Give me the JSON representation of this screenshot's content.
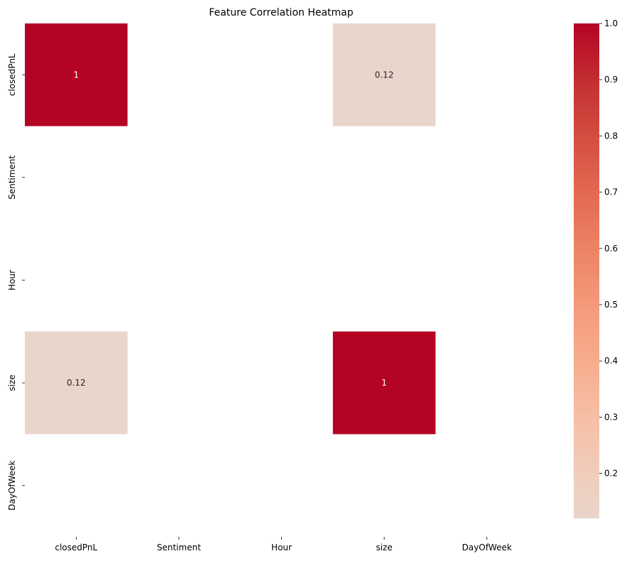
{
  "chart_data": {
    "type": "heatmap",
    "title": "Feature Correlation Heatmap",
    "x_categories": [
      "closedPnL",
      "Sentiment",
      "Hour",
      "size",
      "DayOfWeek"
    ],
    "y_categories": [
      "closedPnL",
      "Sentiment",
      "Hour",
      "size",
      "DayOfWeek"
    ],
    "matrix": [
      [
        1,
        null,
        null,
        0.12,
        null
      ],
      [
        null,
        null,
        null,
        null,
        null
      ],
      [
        null,
        null,
        null,
        null,
        null
      ],
      [
        0.12,
        null,
        null,
        1,
        null
      ],
      [
        null,
        null,
        null,
        null,
        null
      ]
    ],
    "cell_labels": [
      [
        "1",
        "",
        "",
        "0.12",
        ""
      ],
      [
        "",
        "",
        "",
        "",
        ""
      ],
      [
        "",
        "",
        "",
        "",
        ""
      ],
      [
        "0.12",
        "",
        "",
        "1",
        ""
      ],
      [
        "",
        "",
        "",
        "",
        ""
      ]
    ],
    "colormap": "coolwarm",
    "colorbar": {
      "range": [
        0.12,
        1.0
      ],
      "ticks": [
        0.2,
        0.3,
        0.4,
        0.5,
        0.6,
        0.7,
        0.8,
        0.9,
        1.0
      ],
      "tick_labels": [
        "0.2",
        "0.3",
        "0.4",
        "0.5",
        "0.6",
        "0.7",
        "0.8",
        "0.9",
        "1.0"
      ]
    },
    "grid": false
  }
}
